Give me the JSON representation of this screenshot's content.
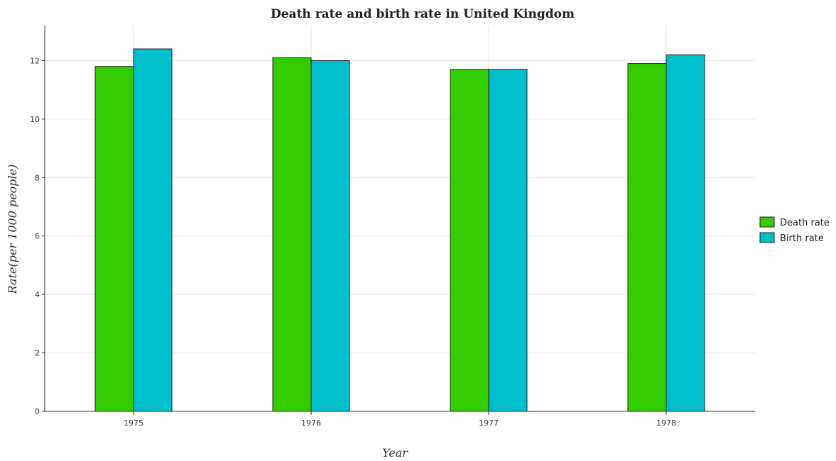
{
  "chart_data": {
    "type": "bar",
    "title": "Death rate and birth rate in United Kingdom",
    "xlabel": "Year",
    "ylabel": "Rate(per 1000 people)",
    "categories": [
      "1975",
      "1976",
      "1977",
      "1978"
    ],
    "series": [
      {
        "name": "Death rate",
        "color": "#33cc00",
        "values": [
          11.8,
          12.1,
          11.7,
          11.9
        ]
      },
      {
        "name": "Birth rate",
        "color": "#00bfcc",
        "values": [
          12.4,
          12.0,
          11.7,
          12.2
        ]
      }
    ],
    "ylim": [
      0,
      13.2
    ],
    "yticks": [
      0,
      2,
      4,
      6,
      8,
      10,
      12
    ],
    "grid": true,
    "legend_position": "right"
  }
}
